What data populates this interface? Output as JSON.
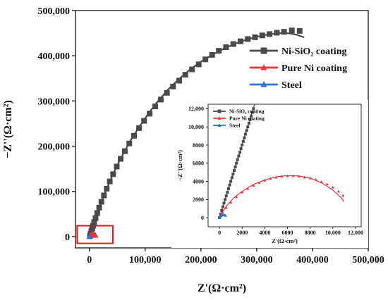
{
  "chart_data": [
    {
      "type": "scatter",
      "role": "main",
      "xlabel": "Z'(Ω·cm²)",
      "ylabel": "−Z''(Ω·cm²)",
      "xlim": [
        -25000,
        500000
      ],
      "ylim": [
        -25000,
        500000
      ],
      "xticks": [
        0,
        100000,
        200000,
        300000,
        400000,
        500000
      ],
      "yticks": [
        0,
        100000,
        200000,
        300000,
        400000,
        500000
      ],
      "xtick_labels": [
        "0",
        "100,000",
        "200,000",
        "300,000",
        "400,000",
        "500,000"
      ],
      "ytick_labels": [
        "0",
        "100,000",
        "200,000",
        "300,000",
        "400,000",
        "500,000"
      ],
      "legend_position": "top-right",
      "highlight_box": {
        "x": [
          -22000,
          42000
        ],
        "y": [
          -15000,
          24000
        ],
        "color": "#e8141c"
      },
      "series": [
        {
          "name": "Ni-SiO₂ coating",
          "color": "#4a4a4a",
          "marker": "square",
          "points": [
            [
              1000,
              1000
            ],
            [
              2000,
              6000
            ],
            [
              3500,
              12000
            ],
            [
              5000,
              18000
            ],
            [
              6500,
              24000
            ],
            [
              8500,
              32000
            ],
            [
              11000,
              41000
            ],
            [
              14000,
              52000
            ],
            [
              17500,
              64000
            ],
            [
              21500,
              77000
            ],
            [
              26000,
              91000
            ],
            [
              31000,
              106000
            ],
            [
              36500,
              122000
            ],
            [
              42500,
              138000
            ],
            [
              49000,
              155000
            ],
            [
              56000,
              172000
            ],
            [
              63500,
              189000
            ],
            [
              71500,
              206000
            ],
            [
              80000,
              223000
            ],
            [
              89000,
              240000
            ],
            [
              98000,
              256000
            ],
            [
              108000,
              272000
            ],
            [
              118000,
              288000
            ],
            [
              128000,
              303000
            ],
            [
              139000,
              318000
            ],
            [
              150000,
              332000
            ],
            [
              161000,
              345000
            ],
            [
              172000,
              358000
            ],
            [
              184000,
              370000
            ],
            [
              196000,
              381000
            ],
            [
              208000,
              392000
            ],
            [
              220000,
              402000
            ],
            [
              232000,
              411000
            ],
            [
              245000,
              419000
            ],
            [
              258000,
              426000
            ],
            [
              271000,
              432000
            ],
            [
              284000,
              437000
            ],
            [
              297000,
              441000
            ],
            [
              310000,
              445000
            ],
            [
              323000,
              448000
            ],
            [
              336000,
              451000
            ],
            [
              349000,
              453000
            ],
            [
              363000,
              456000
            ],
            [
              377000,
              455000
            ]
          ],
          "fit": [
            [
              0,
              0
            ],
            [
              5000,
              20000
            ],
            [
              10000,
              38000
            ],
            [
              20000,
              72000
            ],
            [
              30000,
              103000
            ],
            [
              40000,
              132000
            ],
            [
              50000,
              158000
            ],
            [
              60000,
              182000
            ],
            [
              75000,
              215000
            ],
            [
              90000,
              244000
            ],
            [
              105000,
              271000
            ],
            [
              120000,
              295000
            ],
            [
              140000,
              324000
            ],
            [
              160000,
              348000
            ],
            [
              180000,
              369000
            ],
            [
              200000,
              387000
            ],
            [
              220000,
              402000
            ],
            [
              240000,
              415000
            ],
            [
              260000,
              426000
            ],
            [
              280000,
              435000
            ],
            [
              300000,
              442000
            ],
            [
              320000,
              447000
            ],
            [
              340000,
              450000
            ],
            [
              355000,
              450000
            ],
            [
              370000,
              447000
            ],
            [
              385000,
              441000
            ]
          ]
        },
        {
          "name": "Pure Ni coating",
          "color": "#e8343c",
          "marker": "triangle",
          "points": [
            [
              200,
              100
            ],
            [
              1000,
              1200
            ],
            [
              2000,
              2200
            ],
            [
              3500,
              3300
            ],
            [
              5000,
              4200
            ],
            [
              6500,
              4600
            ],
            [
              8000,
              4600
            ],
            [
              9500,
              4000
            ],
            [
              10500,
              3100
            ],
            [
              11000,
              2400
            ]
          ],
          "fit": [
            [
              0,
              0
            ],
            [
              500,
              800
            ],
            [
              1000,
              1400
            ],
            [
              2000,
              2400
            ],
            [
              3000,
              3200
            ],
            [
              4000,
              3900
            ],
            [
              5000,
              4350
            ],
            [
              6000,
              4650
            ],
            [
              7000,
              4700
            ],
            [
              8000,
              4500
            ],
            [
              9000,
              4000
            ],
            [
              10000,
              3300
            ],
            [
              11000,
              2200
            ]
          ]
        },
        {
          "name": "Steel",
          "color": "#2d6fd6",
          "marker": "triangle",
          "points": [
            [
              0,
              0
            ],
            [
              50,
              90
            ],
            [
              110,
              180
            ],
            [
              190,
              250
            ],
            [
              290,
              290
            ],
            [
              390,
              300
            ],
            [
              480,
              280
            ],
            [
              540,
              230
            ]
          ],
          "fit": [
            [
              0,
              0
            ],
            [
              100,
              160
            ],
            [
              200,
              250
            ],
            [
              300,
              290
            ],
            [
              400,
              300
            ],
            [
              500,
              270
            ],
            [
              550,
              220
            ]
          ]
        }
      ]
    },
    {
      "type": "scatter",
      "role": "inset",
      "xlabel": "Z'(Ω·cm²)",
      "ylabel": "−Z''(Ω·cm²)",
      "xlim": [
        -1000,
        12500
      ],
      "ylim": [
        -1000,
        12500
      ],
      "xticks": [
        0,
        2000,
        4000,
        6000,
        8000,
        10000,
        12000
      ],
      "yticks": [
        0,
        2000,
        4000,
        6000,
        8000,
        10000,
        12000
      ],
      "xtick_labels": [
        "0",
        "2000",
        "4000",
        "6000",
        "8000",
        "10,000",
        "12,000"
      ],
      "ytick_labels": [
        "0",
        "2000",
        "4000",
        "6000",
        "8000",
        "10,000",
        "12,000"
      ],
      "legend_position": "top-left",
      "series": [
        {
          "name": "Ni-SiO₂ coating",
          "color": "#4a4a4a",
          "marker": "square",
          "points": [
            [
              0,
              0
            ],
            [
              100,
              380
            ],
            [
              200,
              800
            ],
            [
              300,
              1200
            ],
            [
              400,
              1600
            ],
            [
              500,
              2000
            ],
            [
              600,
              2400
            ],
            [
              700,
              2800
            ],
            [
              800,
              3200
            ],
            [
              900,
              3600
            ],
            [
              1000,
              4000
            ],
            [
              1100,
              4400
            ],
            [
              1200,
              4800
            ],
            [
              1300,
              5200
            ],
            [
              1400,
              5600
            ],
            [
              1500,
              6000
            ],
            [
              1600,
              6400
            ],
            [
              1700,
              6800
            ],
            [
              1800,
              7200
            ],
            [
              1900,
              7600
            ],
            [
              2000,
              8000
            ],
            [
              2100,
              8400
            ],
            [
              2200,
              8800
            ],
            [
              2300,
              9200
            ],
            [
              2400,
              9600
            ],
            [
              2500,
              10000
            ],
            [
              2600,
              10400
            ],
            [
              2700,
              10800
            ],
            [
              2800,
              11200
            ],
            [
              2900,
              11600
            ],
            [
              3000,
              12000
            ]
          ],
          "fit": [
            [
              0,
              0
            ],
            [
              3100,
              12500
            ]
          ]
        },
        {
          "name": "Pure Ni coating",
          "color": "#e8343c",
          "marker": "triangle",
          "points": [
            [
              100,
              150
            ],
            [
              300,
              550
            ],
            [
              600,
              1100
            ],
            [
              1000,
              1700
            ],
            [
              1500,
              2300
            ],
            [
              2000,
              2800
            ],
            [
              2500,
              3200
            ],
            [
              3000,
              3550
            ],
            [
              3500,
              3850
            ],
            [
              4000,
              4100
            ],
            [
              4500,
              4300
            ],
            [
              5000,
              4450
            ],
            [
              5500,
              4550
            ],
            [
              6000,
              4600
            ],
            [
              6500,
              4600
            ],
            [
              7000,
              4550
            ],
            [
              7500,
              4450
            ],
            [
              8000,
              4350
            ],
            [
              8500,
              4200
            ],
            [
              9000,
              3950
            ],
            [
              9500,
              3700
            ],
            [
              10000,
              3350
            ],
            [
              10500,
              2900
            ],
            [
              10900,
              2450
            ]
          ],
          "fit": [
            [
              0,
              0
            ],
            [
              300,
              700
            ],
            [
              700,
              1400
            ],
            [
              1200,
              2100
            ],
            [
              2000,
              2900
            ],
            [
              3000,
              3650
            ],
            [
              4000,
              4150
            ],
            [
              5000,
              4500
            ],
            [
              6000,
              4650
            ],
            [
              7000,
              4600
            ],
            [
              8000,
              4350
            ],
            [
              9000,
              3850
            ],
            [
              10000,
              3050
            ],
            [
              10700,
              2250
            ],
            [
              11000,
              1750
            ]
          ]
        },
        {
          "name": "Steel",
          "color": "#2d6fd6",
          "marker": "triangle",
          "points": [
            [
              0,
              0
            ],
            [
              50,
              90
            ],
            [
              110,
              180
            ],
            [
              190,
              250
            ],
            [
              290,
              290
            ],
            [
              390,
              300
            ],
            [
              480,
              280
            ],
            [
              540,
              230
            ]
          ],
          "fit": [
            [
              0,
              0
            ],
            [
              100,
              160
            ],
            [
              200,
              250
            ],
            [
              300,
              290
            ],
            [
              400,
              300
            ],
            [
              500,
              270
            ],
            [
              550,
              220
            ]
          ]
        }
      ]
    }
  ]
}
